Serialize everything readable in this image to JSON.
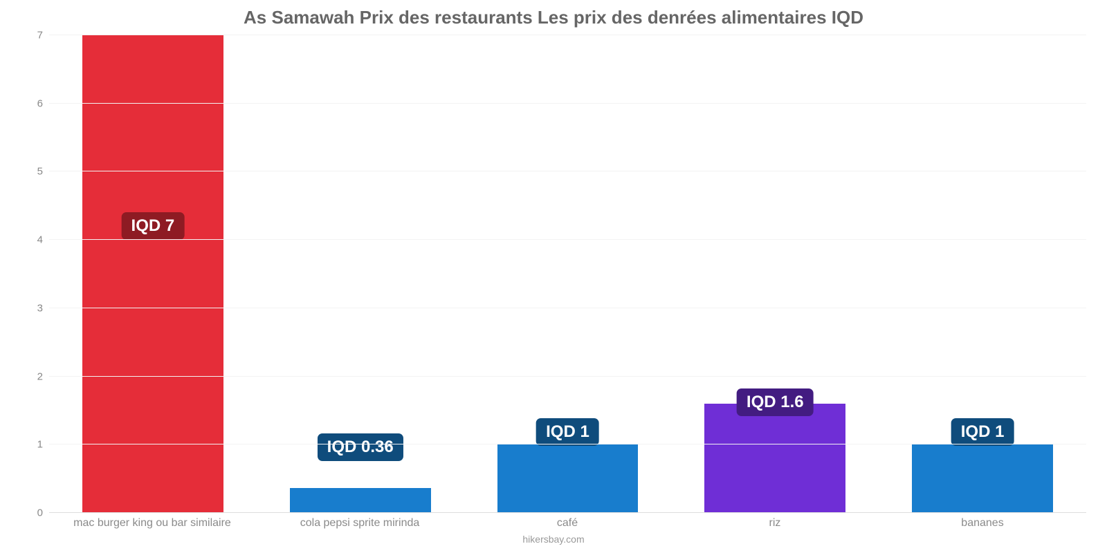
{
  "chart": {
    "type": "bar",
    "title": "As Samawah Prix des restaurants Les prix des denrées alimentaires IQD",
    "title_color": "#666666",
    "title_fontsize": 26,
    "background_color": "#ffffff",
    "grid_color": "#f3f3f3",
    "baseline_color": "#dddddd",
    "axis_label_color": "#888888",
    "axis_label_fontsize": 15,
    "x_label_fontsize": 16,
    "badge_fontsize": 24,
    "badge_text_color": "#ffffff",
    "ylim": [
      0,
      7
    ],
    "yticks": [
      0,
      1,
      2,
      3,
      4,
      5,
      6,
      7
    ],
    "bar_width_pct": 68,
    "source_text": "hikersbay.com",
    "categories": [
      "mac burger king ou bar similaire",
      "cola pepsi sprite mirinda",
      "café",
      "riz",
      "bananes"
    ],
    "values": [
      7,
      0.36,
      1,
      1.6,
      1
    ],
    "value_labels": [
      "IQD 7",
      "IQD 0.36",
      "IQD 1",
      "IQD 1.6",
      "IQD 1"
    ],
    "bar_colors": [
      "#e52d39",
      "#187dcd",
      "#187dcd",
      "#6f2ed6",
      "#187dcd"
    ],
    "badge_colors": [
      "#8e1b23",
      "#0f4c7c",
      "#0f4c7c",
      "#431c81",
      "#0f4c7c"
    ],
    "badge_y_for_value": [
      3.8,
      0.56,
      0.78,
      1.22,
      0.78
    ]
  }
}
